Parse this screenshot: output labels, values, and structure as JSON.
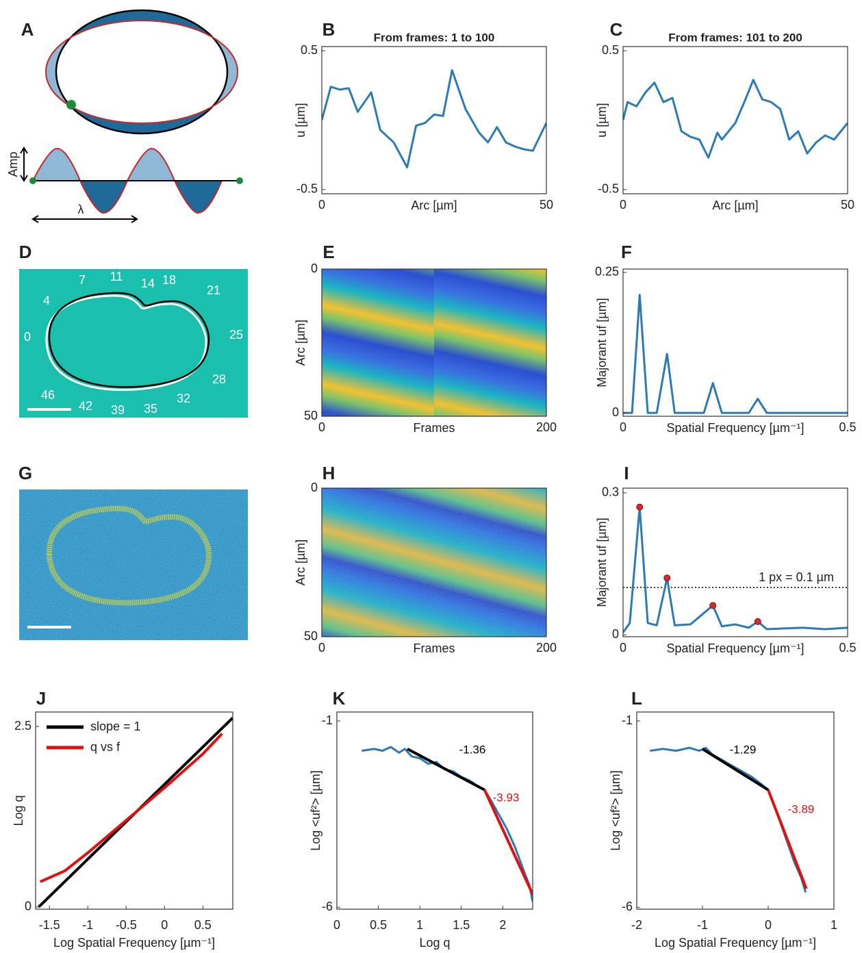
{
  "chart_data": [
    {
      "type": "diagram",
      "panel": "A",
      "labels": [
        "Amp",
        "λ"
      ]
    },
    {
      "type": "line",
      "panel": "B",
      "title": "From frames: 1 to 100",
      "xlabel": "Arc [µm]",
      "ylabel": "u [µm]",
      "xlim": [
        0,
        50
      ],
      "ylim": [
        -0.53,
        0.53
      ],
      "xticks": [
        0,
        50
      ],
      "yticks": [
        -0.5,
        0.5
      ],
      "series": [
        {
          "color": "#2a7ab8",
          "x": [
            0,
            2,
            4,
            6,
            8,
            11,
            13,
            16,
            19,
            21,
            23,
            25,
            27,
            29,
            32,
            35,
            37,
            39,
            41,
            43,
            45,
            47,
            50
          ],
          "values": [
            0,
            0.24,
            0.22,
            0.23,
            0.06,
            0.2,
            -0.07,
            -0.16,
            -0.34,
            -0.04,
            -0.02,
            0.04,
            0.03,
            0.36,
            0.08,
            -0.09,
            -0.16,
            -0.05,
            -0.16,
            -0.19,
            -0.21,
            -0.22,
            -0.02
          ]
        }
      ]
    },
    {
      "type": "line",
      "panel": "C",
      "title": "From frames: 101 to 200",
      "xlabel": "Arc [µm]",
      "ylabel": "u [µm]",
      "xlim": [
        0,
        50
      ],
      "ylim": [
        -0.53,
        0.53
      ],
      "xticks": [
        0,
        50
      ],
      "yticks": [
        -0.5,
        0.5
      ],
      "series": [
        {
          "color": "#2a7ab8",
          "x": [
            0,
            1,
            3,
            5,
            7,
            9,
            11,
            13,
            15,
            17,
            19,
            21,
            22,
            25,
            27,
            29,
            31,
            33,
            35,
            37,
            39,
            41,
            43,
            45,
            47,
            50
          ],
          "values": [
            0,
            0.13,
            0.1,
            0.2,
            0.27,
            0.13,
            0.16,
            -0.08,
            -0.12,
            -0.14,
            -0.27,
            -0.09,
            -0.14,
            -0.02,
            0.13,
            0.29,
            0.15,
            0.13,
            0.08,
            -0.14,
            -0.08,
            -0.24,
            -0.16,
            -0.11,
            -0.14,
            -0.02
          ]
        }
      ]
    },
    {
      "type": "image",
      "panel": "D",
      "contour_labels": [
        0,
        4,
        7,
        11,
        14,
        18,
        21,
        25,
        28,
        32,
        35,
        39,
        42,
        46
      ]
    },
    {
      "type": "heatmap",
      "panel": "E",
      "xlabel": "Frames",
      "ylabel": "Arc [µm]",
      "xlim": [
        0,
        200
      ],
      "ylim": [
        0,
        50
      ],
      "xticks": [
        0,
        200
      ],
      "yticks": [
        0,
        50
      ],
      "y_reversed": true,
      "noise": false
    },
    {
      "type": "line",
      "panel": "F",
      "xlabel": "Spatial Frequency [µm⁻¹]",
      "ylabel": "Majorant uf [µm]",
      "xlim": [
        0,
        0.5
      ],
      "ylim": [
        -0.006,
        0.256
      ],
      "xticks": [
        0,
        0.5
      ],
      "yticks": [
        0,
        0.25
      ],
      "series": [
        {
          "color": "#2a7ab8",
          "x": [
            0,
            0.02,
            0.037,
            0.055,
            0.075,
            0.098,
            0.115,
            0.18,
            0.2,
            0.22,
            0.28,
            0.3,
            0.32,
            0.5
          ],
          "values": [
            0,
            0,
            0.21,
            0,
            0,
            0.105,
            0,
            0,
            0.053,
            0,
            0,
            0.025,
            0,
            0
          ]
        }
      ]
    },
    {
      "type": "image",
      "panel": "G"
    },
    {
      "type": "heatmap",
      "panel": "H",
      "xlabel": "Frames",
      "ylabel": "Arc [µm]",
      "xlim": [
        0,
        200
      ],
      "ylim": [
        0,
        50
      ],
      "xticks": [
        0,
        200
      ],
      "yticks": [
        0,
        50
      ],
      "y_reversed": true,
      "noise": true
    },
    {
      "type": "line",
      "panel": "I",
      "xlabel": "Spatial Frequency [µm⁻¹]",
      "ylabel": "Majorant uf [µm]",
      "xlim": [
        0,
        0.5
      ],
      "ylim": [
        -0.004,
        0.31
      ],
      "xticks": [
        0,
        0.5
      ],
      "yticks": [
        0,
        0.3
      ],
      "hline": 0.1,
      "hline_label": "1 px = 0.1 µm",
      "series": [
        {
          "color": "#2a7ab8",
          "x": [
            0,
            0.015,
            0.037,
            0.055,
            0.075,
            0.098,
            0.115,
            0.15,
            0.2,
            0.22,
            0.25,
            0.28,
            0.3,
            0.32,
            0.4,
            0.45,
            0.5
          ],
          "values": [
            0.005,
            0.025,
            0.27,
            0.025,
            0.02,
            0.12,
            0.02,
            0.022,
            0.062,
            0.018,
            0.022,
            0.015,
            0.028,
            0.012,
            0.015,
            0.012,
            0.015
          ]
        },
        {
          "color": "#d42a2a",
          "marker": true,
          "x": [
            0.037,
            0.098,
            0.2,
            0.3
          ],
          "values": [
            0.27,
            0.12,
            0.062,
            0.028
          ]
        }
      ]
    },
    {
      "type": "line",
      "panel": "J",
      "xlabel": "Log Spatial Frequency [µm⁻¹]",
      "ylabel": "Log q",
      "xlim": [
        -1.68,
        0.89
      ],
      "ylim": [
        -0.03,
        2.7
      ],
      "xticks": [
        -1.5,
        -1,
        -0.5,
        0,
        0.5
      ],
      "yticks": [
        0,
        2.5
      ],
      "legend": "upper left",
      "series": [
        {
          "name": "slope = 1",
          "color": "#000000",
          "x": [
            -1.64,
            0.89
          ],
          "values": [
            0,
            2.62
          ]
        },
        {
          "name": "q vs f",
          "color": "#e01010",
          "x": [
            -1.62,
            -1.3,
            -1,
            -0.5,
            0,
            0.5,
            0.75
          ],
          "values": [
            0.35,
            0.5,
            0.75,
            1.2,
            1.65,
            2.12,
            2.4
          ]
        }
      ]
    },
    {
      "type": "line",
      "panel": "K",
      "xlabel": "Log q",
      "ylabel": "Log <uf²> [µm]",
      "xlim": [
        0,
        2.36
      ],
      "ylim": [
        -6.05,
        -0.76
      ],
      "xticks": [
        0,
        0.5,
        1,
        1.5,
        2
      ],
      "yticks": [
        -6,
        -1
      ],
      "annotations": [
        {
          "text": -1.36,
          "color": "#000000"
        },
        {
          "text": -3.93,
          "color": "#e01010"
        }
      ],
      "series": [
        {
          "color": "#2a7ab8",
          "x": [
            0.3,
            0.45,
            0.55,
            0.65,
            0.75,
            0.82,
            0.9,
            1.0,
            1.1,
            1.2,
            1.3,
            1.4,
            1.5,
            1.6,
            1.7,
            1.78,
            1.85,
            1.95,
            2.05,
            2.15,
            2.25,
            2.32,
            2.36
          ],
          "values": [
            -1.8,
            -1.75,
            -1.8,
            -1.7,
            -1.85,
            -1.75,
            -1.95,
            -2.0,
            -2.15,
            -2.1,
            -2.3,
            -2.35,
            -2.5,
            -2.6,
            -2.75,
            -2.85,
            -3.1,
            -3.5,
            -3.9,
            -4.4,
            -5.0,
            -5.4,
            -5.85
          ]
        },
        {
          "color": "#000000",
          "x": [
            0.85,
            1.78
          ],
          "values": [
            -1.75,
            -2.85
          ]
        },
        {
          "color": "#e01010",
          "x": [
            1.78,
            2.36
          ],
          "values": [
            -2.85,
            -5.65
          ]
        }
      ]
    },
    {
      "type": "line",
      "panel": "L",
      "xlabel": "Log Spatial Frequency [µm⁻¹]",
      "ylabel": "Log <uf²> [µm]",
      "xlim": [
        -2,
        1
      ],
      "ylim": [
        -6.05,
        -0.76
      ],
      "xticks": [
        -2,
        -1,
        0,
        1
      ],
      "yticks": [
        -6,
        -1
      ],
      "annotations": [
        {
          "text": -1.29,
          "color": "#000000"
        },
        {
          "text": -3.89,
          "color": "#e01010"
        }
      ],
      "series": [
        {
          "color": "#2a7ab8",
          "x": [
            -1.8,
            -1.6,
            -1.4,
            -1.2,
            -1.05,
            -0.95,
            -0.85,
            -0.7,
            -0.55,
            -0.4,
            -0.25,
            -0.1,
            0,
            0.1,
            0.2,
            0.3,
            0.4,
            0.5,
            0.57
          ],
          "values": [
            -1.8,
            -1.75,
            -1.8,
            -1.72,
            -1.8,
            -1.72,
            -1.9,
            -2.05,
            -2.2,
            -2.35,
            -2.5,
            -2.7,
            -2.85,
            -3.3,
            -3.8,
            -4.3,
            -4.8,
            -5.2,
            -5.6
          ]
        },
        {
          "color": "#000000",
          "x": [
            -1,
            0
          ],
          "values": [
            -1.75,
            -2.85
          ]
        },
        {
          "color": "#e01010",
          "x": [
            0,
            0.58
          ],
          "values": [
            -2.85,
            -5.5
          ]
        }
      ]
    }
  ]
}
